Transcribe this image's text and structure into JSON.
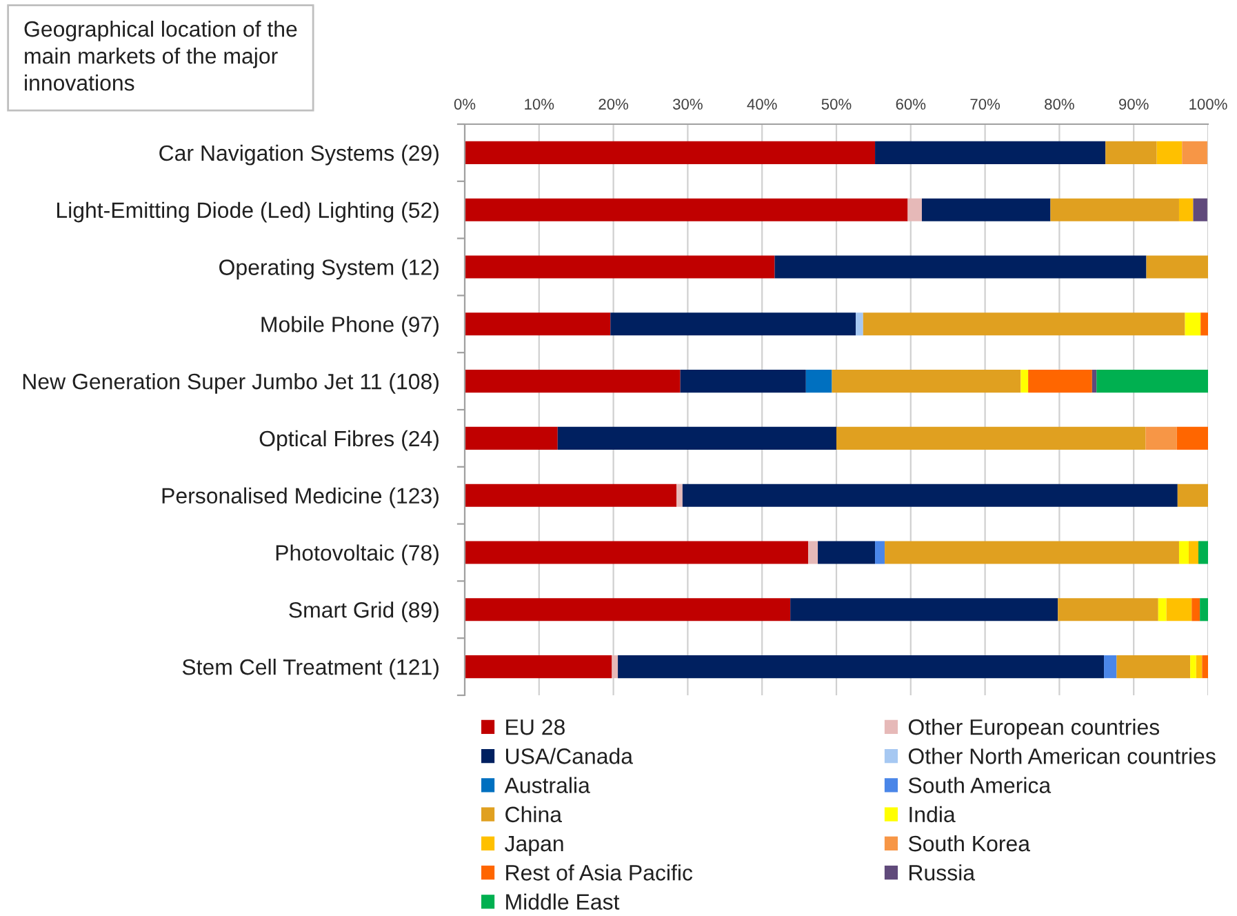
{
  "chart_data": {
    "type": "bar",
    "orientation": "horizontal",
    "stacked": true,
    "title": "Geographical location of the main markets of the major innovations",
    "categories": [
      "Car Navigation Systems (29)",
      "Light-Emitting Diode (Led) Lighting (52)",
      "Operating System (12)",
      "Mobile Phone (97)",
      "New Generation Super Jumbo Jet 11 (108)",
      "Optical Fibres (24)",
      "Personalised Medicine (123)",
      "Photovoltaic (78)",
      "Smart Grid (89)",
      "Stem Cell Treatment (121)"
    ],
    "series": [
      {
        "name": "EU 28",
        "color": "#c00000",
        "values": [
          55.2,
          59.6,
          41.7,
          19.6,
          29.0,
          12.5,
          28.5,
          46.2,
          43.8,
          19.8
        ]
      },
      {
        "name": "Other European countries",
        "color": "#e6b9b8",
        "values": [
          null,
          1.9,
          null,
          null,
          null,
          null,
          0.8,
          1.3,
          null,
          0.8
        ]
      },
      {
        "name": "USA/Canada",
        "color": "#002060",
        "values": [
          31.0,
          17.3,
          50.0,
          33.0,
          16.9,
          37.5,
          66.6,
          7.7,
          36.0,
          65.4
        ]
      },
      {
        "name": "Other North American countries",
        "color": "#a6c8f2",
        "values": [
          null,
          null,
          null,
          1.0,
          null,
          null,
          null,
          null,
          null,
          null
        ]
      },
      {
        "name": "Australia",
        "color": "#0070c0",
        "values": [
          null,
          null,
          null,
          null,
          3.5,
          null,
          null,
          null,
          null,
          null
        ]
      },
      {
        "name": "South America",
        "color": "#4a86e8",
        "values": [
          null,
          null,
          null,
          null,
          null,
          null,
          null,
          1.3,
          null,
          1.7
        ]
      },
      {
        "name": "China",
        "color": "#e0a020",
        "values": [
          6.9,
          17.3,
          8.3,
          43.3,
          25.4,
          41.6,
          4.1,
          39.6,
          13.5,
          9.9
        ]
      },
      {
        "name": "India",
        "color": "#ffff00",
        "values": [
          null,
          null,
          null,
          2.1,
          1.0,
          null,
          null,
          1.3,
          1.1,
          0.8
        ]
      },
      {
        "name": "Japan",
        "color": "#ffc000",
        "values": [
          3.4,
          1.9,
          null,
          null,
          null,
          null,
          null,
          1.3,
          3.4,
          0.8
        ]
      },
      {
        "name": "South Korea",
        "color": "#f79646",
        "values": [
          3.4,
          null,
          null,
          null,
          null,
          4.2,
          null,
          null,
          null,
          null
        ]
      },
      {
        "name": "Rest of Asia Pacific",
        "color": "#ff6600",
        "values": [
          null,
          null,
          null,
          1.0,
          8.6,
          4.2,
          null,
          null,
          1.1,
          0.8
        ]
      },
      {
        "name": "Russia",
        "color": "#604a7b",
        "values": [
          null,
          1.9,
          null,
          null,
          0.6,
          null,
          null,
          null,
          null,
          null
        ]
      },
      {
        "name": "Middle East",
        "color": "#00b050",
        "values": [
          null,
          null,
          null,
          null,
          15.0,
          null,
          null,
          1.3,
          1.1,
          null
        ]
      }
    ],
    "xlim": [
      0,
      100
    ],
    "xticks": [
      {
        "value": 0,
        "label": "0%"
      },
      {
        "value": 10,
        "label": "10%"
      },
      {
        "value": 20,
        "label": "20%"
      },
      {
        "value": 30,
        "label": "30%"
      },
      {
        "value": 40,
        "label": "40%"
      },
      {
        "value": 50,
        "label": "50%"
      },
      {
        "value": 60,
        "label": "60%"
      },
      {
        "value": 70,
        "label": "70%"
      },
      {
        "value": 80,
        "label": "80%"
      },
      {
        "value": 90,
        "label": "90%"
      },
      {
        "value": 100,
        "label": "100%"
      }
    ],
    "grid": "x",
    "legend": "bottom"
  }
}
